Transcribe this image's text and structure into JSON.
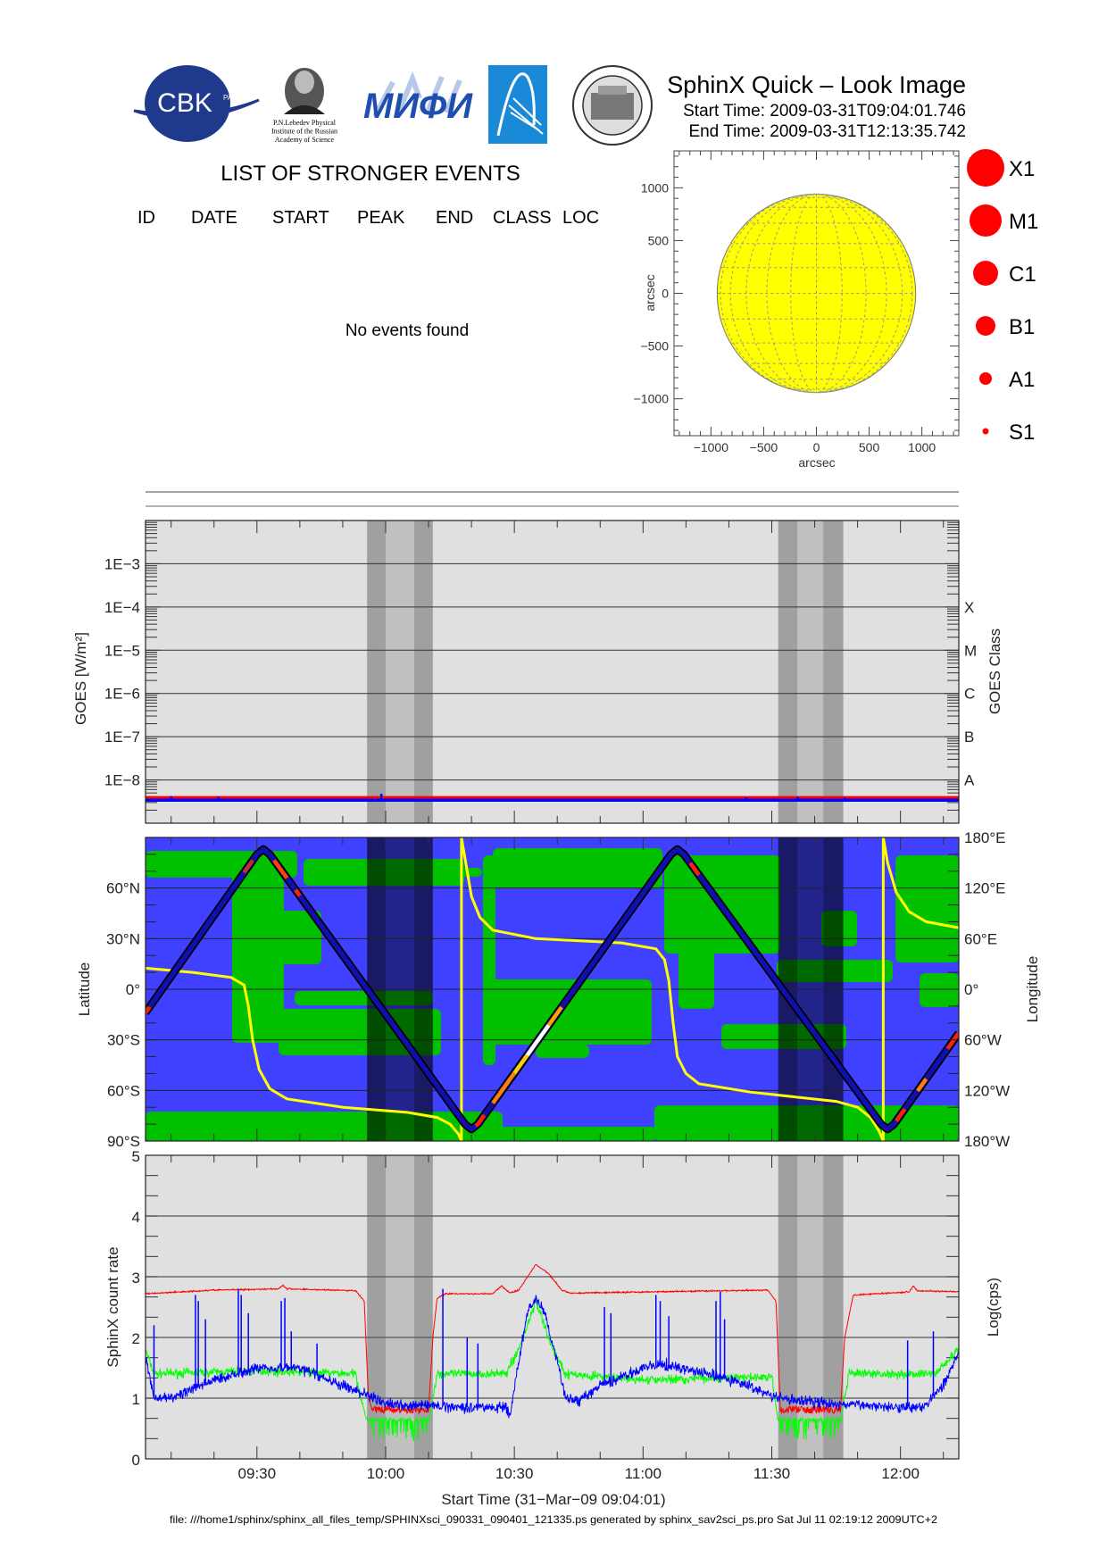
{
  "header": {
    "logos": {
      "cbk": {
        "text": "CBK",
        "sub": "PAN"
      },
      "lebedev": {
        "lines": [
          "P.N.Lebedev Physical",
          "Institute of the Russian",
          "Academy of Science"
        ]
      },
      "mifi": {
        "text": "МИФИ"
      },
      "blue_logo": {
        "icon": "arc-comet-icon"
      },
      "seal": {
        "icon": "university-seal-icon"
      }
    },
    "title": "SphinX Quick – Look Image",
    "start_time": "Start Time: 2009-03-31T09:04:01.746",
    "end_time": "End Time: 2009-03-31T12:13:35.742"
  },
  "events": {
    "title": "LIST OF STRONGER EVENTS",
    "columns": [
      "ID",
      "DATE",
      "START",
      "PEAK",
      "END",
      "CLASS",
      "LOC"
    ],
    "message": "No events found"
  },
  "footer": "file: ///home1/sphinx/sphinx_all_files_temp/SPHINXsci_090331_090401_121335.ps generated by sphinx_sav2sci_ps.pro Sat Jul 11 02:19:12 2009UTC+2",
  "time_axis": {
    "start": "09:04:01.746",
    "end": "12:13:35.742",
    "tick_labels": [
      "09:30",
      "10:00",
      "10:30",
      "11:00",
      "11:30",
      "12:00"
    ],
    "xlabel": "Start Time (31−Mar−09 09:04:01)",
    "shaded_intervals": [
      {
        "from": "09:55:40",
        "to": "10:00:00",
        "shade": "dark"
      },
      {
        "from": "10:00:00",
        "to": "10:06:40",
        "shade": "light"
      },
      {
        "from": "10:06:40",
        "to": "10:11:00",
        "shade": "dark"
      },
      {
        "from": "11:31:30",
        "to": "11:36:00",
        "shade": "dark"
      },
      {
        "from": "11:36:00",
        "to": "11:42:00",
        "shade": "light"
      },
      {
        "from": "11:42:00",
        "to": "11:46:40",
        "shade": "dark"
      }
    ]
  },
  "colors": {
    "panel_bg": "#e0e0e0",
    "band_dark": "#a0a0a0",
    "band_light": "#c0c0c0",
    "ocean": "#4040ff",
    "land": "#00c000",
    "sun": "#ffff00",
    "event": "#ff0000",
    "red": "#ff0000",
    "green": "#00ff00",
    "blue": "#0000ff",
    "longitude": "#ffff00"
  },
  "chart_data": [
    {
      "type": "scatter",
      "name": "flare-location-map",
      "xlabel": "arcsec",
      "ylabel": "arcsec",
      "xlim": [
        -1350,
        1350
      ],
      "ylim": [
        -1350,
        1350
      ],
      "ticks": [
        -1000,
        -500,
        0,
        500,
        1000
      ],
      "tick_labels": [
        "−1000",
        "−500",
        "0",
        "500",
        "1000"
      ],
      "solar_radius_arcsec": 960,
      "points": [],
      "legend": [
        "X1",
        "M1",
        "C1",
        "B1",
        "A1",
        "S1"
      ],
      "legend_placement": "right"
    },
    {
      "type": "line",
      "name": "goes-flux",
      "ylabel": "GOES [W/m²]",
      "yscale": "log",
      "ylim": [
        1e-09,
        0.01
      ],
      "ytick_values": [
        0.001,
        0.0001,
        1e-05,
        1e-06,
        1e-07,
        1e-08
      ],
      "ytick_labels": [
        "1E−3",
        "1E−4",
        "1E−5",
        "1E−6",
        "1E−7",
        "1E−8"
      ],
      "right_labels": [
        "X",
        "M",
        "C",
        "B",
        "A"
      ],
      "right_label_values": [
        0.0001,
        1e-05,
        1e-06,
        1e-07,
        1e-08
      ],
      "right_ylabel": "GOES Class",
      "grid": true,
      "series": [
        {
          "color": "#ff0000",
          "level": 3.9e-09,
          "spikes": []
        },
        {
          "color": "#0000ff",
          "level": 3.4e-09,
          "spikes": [
            [
              "09:10",
              4.2e-09
            ],
            [
              "09:21",
              4.1e-09
            ],
            [
              "09:59",
              4.8e-09
            ],
            [
              "11:24",
              4e-09
            ],
            [
              "11:36",
              4.1e-09
            ],
            [
              "11:47",
              3.9e-09
            ]
          ]
        }
      ]
    },
    {
      "type": "line",
      "name": "orbit-track",
      "ylabel": "Latitude",
      "right_ylabel": "Longitude",
      "ylim": [
        -90,
        90
      ],
      "right_ylim": [
        -180,
        180
      ],
      "ytick_labels": [
        "60°N",
        "30°N",
        "0°",
        "30°S",
        "60°S",
        "90°S"
      ],
      "ytick_values": [
        60,
        30,
        0,
        -30,
        -60,
        -90
      ],
      "right_tick_labels": [
        "180°E",
        "120°E",
        "60°E",
        "0°",
        "60°W",
        "120°W",
        "180°W"
      ],
      "right_tick_values": [
        180,
        120,
        60,
        0,
        -60,
        -120,
        -180
      ],
      "latitude": [
        [
          "09:04:01",
          -14
        ],
        [
          "09:30",
          80
        ],
        [
          "09:31:30",
          83
        ],
        [
          "09:33",
          80
        ],
        [
          "10:18:30",
          -80
        ],
        [
          "10:20",
          -83
        ],
        [
          "10:21:30",
          -80
        ],
        [
          "11:06:30",
          80
        ],
        [
          "11:08",
          83
        ],
        [
          "11:09:30",
          80
        ],
        [
          "11:55:30",
          -80
        ],
        [
          "11:57",
          -83
        ],
        [
          "11:58:30",
          -80
        ],
        [
          "12:13:35",
          -26
        ]
      ],
      "longitude": [
        [
          "09:04:01",
          25
        ],
        [
          "09:15",
          20
        ],
        [
          "09:24",
          14
        ],
        [
          "09:27",
          5
        ],
        [
          "09:28",
          -20
        ],
        [
          "09:29",
          -60
        ],
        [
          "09:30:30",
          -95
        ],
        [
          "09:33",
          -118
        ],
        [
          "09:37",
          -130
        ],
        [
          "09:50",
          -140
        ],
        [
          "10:05",
          -146
        ],
        [
          "10:12",
          -152
        ],
        [
          "10:15",
          -160
        ],
        [
          "10:17",
          -172
        ],
        [
          "10:17:40",
          -180
        ],
        [
          "10:17:40",
          180
        ],
        [
          "10:19",
          140
        ],
        [
          "10:20",
          110
        ],
        [
          "10:22",
          85
        ],
        [
          "10:25",
          70
        ],
        [
          "10:35",
          60
        ],
        [
          "10:55",
          55
        ],
        [
          "11:03",
          48
        ],
        [
          "11:05",
          35
        ],
        [
          "11:06",
          10
        ],
        [
          "11:07",
          -40
        ],
        [
          "11:08",
          -80
        ],
        [
          "11:10",
          -100
        ],
        [
          "11:13",
          -112
        ],
        [
          "11:25",
          -122
        ],
        [
          "11:45",
          -133
        ],
        [
          "11:50",
          -140
        ],
        [
          "11:53",
          -152
        ],
        [
          "11:55",
          -168
        ],
        [
          "11:56",
          -180
        ],
        [
          "11:56",
          180
        ],
        [
          "11:57",
          150
        ],
        [
          "11:59",
          115
        ],
        [
          "12:02",
          92
        ],
        [
          "12:06",
          80
        ],
        [
          "12:13:35",
          73
        ]
      ],
      "track_highlights": [
        [
          "09:04:01",
          "09:05",
          "#ff2000"
        ],
        [
          "09:27",
          "09:29",
          "#c03030"
        ],
        [
          "09:34",
          "09:37",
          "#ff4000"
        ],
        [
          "09:39",
          "09:40",
          "#ff2000"
        ],
        [
          "10:21",
          "10:23",
          "#ff2000"
        ],
        [
          "10:25",
          "10:30",
          "#ff8000"
        ],
        [
          "10:30",
          "10:33",
          "#ffd000"
        ],
        [
          "10:33",
          "10:38",
          "#ffffff"
        ],
        [
          "10:38",
          "10:41",
          "#ffa000"
        ],
        [
          "11:11",
          "11:13",
          "#ff2000"
        ],
        [
          "11:59",
          "12:01",
          "#ff2000"
        ],
        [
          "12:04",
          "12:06",
          "#ff8000"
        ],
        [
          "12:11",
          "12:13:35",
          "#ff2000"
        ]
      ],
      "grid": true
    },
    {
      "type": "line",
      "name": "sphinx-count-rate",
      "ylabel": "SphinX count rate",
      "right_ylabel": "Log(cps)",
      "ylim": [
        0,
        5
      ],
      "ytick_labels": [
        "0",
        "1",
        "2",
        "3",
        "4",
        "5"
      ],
      "ytick_values": [
        0,
        1,
        2,
        3,
        4,
        5
      ],
      "grid": true,
      "series": [
        {
          "color": "#00ff00",
          "values": [
            [
              "09:04:01",
              1.8
            ],
            [
              "09:06",
              1.4
            ],
            [
              "09:30",
              1.45
            ],
            [
              "09:53",
              1.4
            ],
            [
              "09:55:40",
              0.6
            ],
            [
              "10:10",
              0.6
            ],
            [
              "10:12",
              1.4
            ],
            [
              "10:28",
              1.4
            ],
            [
              "10:31",
              1.8
            ],
            [
              "10:35",
              2.6
            ],
            [
              "10:39",
              1.8
            ],
            [
              "10:42",
              1.4
            ],
            [
              "11:00",
              1.3
            ],
            [
              "11:30",
              1.35
            ],
            [
              "11:31:30",
              0.6
            ],
            [
              "11:46",
              0.6
            ],
            [
              "11:48",
              1.4
            ],
            [
              "12:08",
              1.4
            ],
            [
              "12:13:35",
              1.8
            ]
          ]
        },
        {
          "color": "#ff0000",
          "values": [
            [
              "09:04:01",
              2.72
            ],
            [
              "09:20",
              2.78
            ],
            [
              "09:35",
              2.8
            ],
            [
              "09:36",
              2.86
            ],
            [
              "09:37",
              2.8
            ],
            [
              "09:53",
              2.77
            ],
            [
              "09:55",
              2.6
            ],
            [
              "09:56",
              1.0
            ],
            [
              "09:57",
              0.78
            ],
            [
              "10:10",
              0.78
            ],
            [
              "10:11",
              2.0
            ],
            [
              "10:12",
              2.65
            ],
            [
              "10:14",
              2.72
            ],
            [
              "10:25",
              2.72
            ],
            [
              "10:27",
              2.85
            ],
            [
              "10:29",
              2.73
            ],
            [
              "10:31",
              2.78
            ],
            [
              "10:35",
              3.2
            ],
            [
              "10:38",
              3.05
            ],
            [
              "10:41",
              2.78
            ],
            [
              "10:43",
              2.73
            ],
            [
              "11:29",
              2.78
            ],
            [
              "11:31",
              2.6
            ],
            [
              "11:32",
              0.78
            ],
            [
              "11:46",
              0.78
            ],
            [
              "11:47",
              2.0
            ],
            [
              "11:49",
              2.7
            ],
            [
              "12:02",
              2.75
            ],
            [
              "12:03",
              2.85
            ],
            [
              "12:04",
              2.77
            ],
            [
              "12:13:35",
              2.75
            ]
          ]
        },
        {
          "color": "#0000ff",
          "values": [
            [
              "09:04:01",
              1.7
            ],
            [
              "09:06",
              1.0
            ],
            [
              "09:10",
              1.0
            ],
            [
              "09:20",
              1.3
            ],
            [
              "09:30",
              1.5
            ],
            [
              "09:40",
              1.5
            ],
            [
              "09:50",
              1.2
            ],
            [
              "09:56",
              1.05
            ],
            [
              "10:00",
              0.9
            ],
            [
              "10:20",
              0.85
            ],
            [
              "10:28",
              0.85
            ],
            [
              "10:29",
              0.7
            ],
            [
              "10:31",
              1.6
            ],
            [
              "10:33",
              2.4
            ],
            [
              "10:35",
              2.65
            ],
            [
              "10:37",
              2.4
            ],
            [
              "10:40",
              1.6
            ],
            [
              "10:42",
              1.0
            ],
            [
              "10:45",
              0.95
            ],
            [
              "10:50",
              1.2
            ],
            [
              "11:00",
              1.5
            ],
            [
              "11:05",
              1.55
            ],
            [
              "11:15",
              1.4
            ],
            [
              "11:25",
              1.2
            ],
            [
              "11:31",
              1.0
            ],
            [
              "11:45",
              0.9
            ],
            [
              "12:05",
              0.85
            ],
            [
              "12:10",
              1.2
            ],
            [
              "12:13:35",
              1.75
            ]
          ],
          "spikes": [
            [
              "09:06",
              2.2
            ],
            [
              "09:15:40",
              2.7
            ],
            [
              "09:16:20",
              2.6
            ],
            [
              "09:18",
              2.3
            ],
            [
              "09:25:40",
              2.8
            ],
            [
              "09:26:20",
              2.7
            ],
            [
              "09:28",
              2.4
            ],
            [
              "09:35:40",
              2.6
            ],
            [
              "09:36:30",
              2.65
            ],
            [
              "09:38",
              2.1
            ],
            [
              "09:44",
              1.9
            ],
            [
              "10:13:20",
              2.8
            ],
            [
              "10:19",
              2.0
            ],
            [
              "10:21:30",
              1.9
            ],
            [
              "10:51",
              2.5
            ],
            [
              "10:52:30",
              2.4
            ],
            [
              "11:03",
              2.7
            ],
            [
              "11:04",
              2.6
            ],
            [
              "11:06",
              2.35
            ],
            [
              "11:17",
              2.6
            ],
            [
              "11:18",
              2.75
            ],
            [
              "11:19",
              2.3
            ],
            [
              "12:01:40",
              1.95
            ],
            [
              "12:07:40",
              2.1
            ]
          ]
        }
      ]
    }
  ]
}
